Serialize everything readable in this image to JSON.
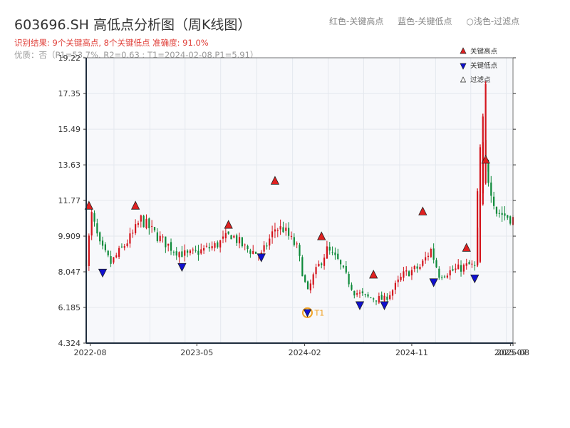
{
  "header": {
    "title": "603696.SH 高低点分析图（周K线图）",
    "legend_red": "红色-关键高点",
    "legend_blue": "蓝色-关键低点",
    "legend_filter": "○浅色-过滤点",
    "result_line": "识别结果: 9个关键高点, 8个关键低点  准确度: 91.0%",
    "quality_line": "优质：否（P1=53.7%, R2=0.63 ; T1=2024-02-08,P1=5.91）"
  },
  "colors": {
    "up": "#d4141c",
    "down": "#0e8a3a",
    "high_marker": "#e02020",
    "low_marker": "#1010d0",
    "t1_ring": "#f0a020",
    "grid": "#e4e8ee",
    "plot_bg": "#f7f8fb"
  },
  "chart_data": {
    "type": "candlestick",
    "title": "603696.SH 高低点分析图（周K线图）",
    "x_axis": {
      "type": "time",
      "range": [
        "2022-07-22",
        "2025-07-18"
      ],
      "tick_labels": [
        "2022-08",
        "2023-05",
        "2024-02",
        "2024-11",
        "2025-07",
        "2025-08"
      ],
      "tick_dates": [
        "2022-08-01",
        "2023-05-01",
        "2024-02-01",
        "2024-11-01",
        "2025-07-12",
        "2025-08-01"
      ]
    },
    "y_axis": {
      "range": [
        4.324,
        19.22
      ],
      "tick_values": [
        4.324,
        6.185,
        8.047,
        9.909,
        11.77,
        13.63,
        15.49,
        17.35,
        19.22
      ],
      "tick_labels": [
        "4.324",
        "6.185",
        "8.047",
        "9.909",
        "11.77",
        "13.63",
        "15.49",
        "17.35",
        "19.22"
      ]
    },
    "grid": true,
    "legend": {
      "placement": "top-right",
      "entries": [
        "关键高点",
        "关键低点",
        "过滤点"
      ]
    },
    "anchors": [
      {
        "date": "2022-07-22",
        "close": 8.6
      },
      {
        "date": "2022-08-05",
        "close": 11.0
      },
      {
        "date": "2022-08-26",
        "close": 9.4
      },
      {
        "date": "2022-09-23",
        "close": 8.5
      },
      {
        "date": "2022-11-18",
        "close": 10.0
      },
      {
        "date": "2022-12-09",
        "close": 10.8
      },
      {
        "date": "2023-01-20",
        "close": 9.9
      },
      {
        "date": "2023-03-03",
        "close": 9.2
      },
      {
        "date": "2023-04-07",
        "close": 8.9
      },
      {
        "date": "2023-06-16",
        "close": 9.4
      },
      {
        "date": "2023-07-28",
        "close": 10.0
      },
      {
        "date": "2023-09-01",
        "close": 9.3
      },
      {
        "date": "2023-10-13",
        "close": 8.9
      },
      {
        "date": "2023-11-17",
        "close": 10.3
      },
      {
        "date": "2023-12-08",
        "close": 10.3
      },
      {
        "date": "2024-01-12",
        "close": 9.3
      },
      {
        "date": "2024-02-08",
        "close": 6.9
      },
      {
        "date": "2024-02-23",
        "close": 7.8
      },
      {
        "date": "2024-03-29",
        "close": 9.2
      },
      {
        "date": "2024-04-26",
        "close": 8.6
      },
      {
        "date": "2024-06-07",
        "close": 7.0
      },
      {
        "date": "2024-07-12",
        "close": 6.7
      },
      {
        "date": "2024-08-23",
        "close": 6.6
      },
      {
        "date": "2024-09-13",
        "close": 7.1
      },
      {
        "date": "2024-10-11",
        "close": 7.9
      },
      {
        "date": "2024-11-22",
        "close": 8.3
      },
      {
        "date": "2024-12-20",
        "close": 9.2
      },
      {
        "date": "2025-01-10",
        "close": 7.9
      },
      {
        "date": "2025-02-28",
        "close": 8.2
      },
      {
        "date": "2025-03-28",
        "close": 8.4
      },
      {
        "date": "2025-04-11",
        "close": 8.3
      },
      {
        "date": "2025-04-25",
        "close": 12.0
      },
      {
        "date": "2025-05-02",
        "close": 14.5
      },
      {
        "date": "2025-05-09",
        "close": 13.5
      },
      {
        "date": "2025-06-06",
        "close": 11.2
      },
      {
        "date": "2025-07-18",
        "close": 10.8
      }
    ],
    "key_highs": [
      {
        "date": "2022-07-29",
        "price": 11.5
      },
      {
        "date": "2022-11-25",
        "price": 11.5
      },
      {
        "date": "2023-07-21",
        "price": 10.5
      },
      {
        "date": "2023-11-17",
        "price": 12.8
      },
      {
        "date": "2024-03-15",
        "price": 9.9
      },
      {
        "date": "2024-07-26",
        "price": 7.9
      },
      {
        "date": "2024-11-29",
        "price": 11.2
      },
      {
        "date": "2025-03-21",
        "price": 9.3
      },
      {
        "date": "2025-05-09",
        "price": 13.9
      }
    ],
    "key_lows": [
      {
        "date": "2022-09-02",
        "price": 8.0
      },
      {
        "date": "2023-03-24",
        "price": 8.3
      },
      {
        "date": "2023-10-13",
        "price": 8.8
      },
      {
        "date": "2024-06-21",
        "price": 6.3
      },
      {
        "date": "2024-08-23",
        "price": 6.3
      },
      {
        "date": "2024-12-27",
        "price": 7.5
      },
      {
        "date": "2025-04-11",
        "price": 7.7
      }
    ],
    "t1": {
      "label": "T1",
      "date": "2024-02-08",
      "price": 5.91
    }
  }
}
